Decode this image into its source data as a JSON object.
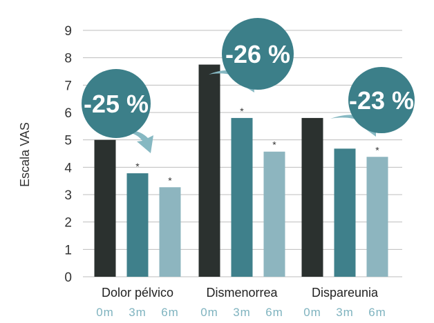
{
  "chart_data": {
    "type": "bar",
    "ylabel": "Escala VAS",
    "ylim": [
      0,
      9
    ],
    "yticks": [
      0,
      1,
      2,
      3,
      4,
      5,
      6,
      7,
      8,
      9
    ],
    "grid": true,
    "categories": [
      "Dolor pélvico",
      "Dismenorrea",
      "Dispareunia"
    ],
    "subcategories": [
      "0m",
      "3m",
      "6m"
    ],
    "series": [
      {
        "name": "0m",
        "values": [
          5.0,
          7.75,
          5.8
        ],
        "color": "#2b312f"
      },
      {
        "name": "3m",
        "values": [
          3.78,
          5.8,
          4.68
        ],
        "color": "#3f808b"
      },
      {
        "name": "6m",
        "values": [
          3.27,
          4.57,
          4.38
        ],
        "color": "#8db5bf"
      }
    ],
    "significance": [
      {
        "category": 0,
        "series": 1,
        "mark": "*"
      },
      {
        "category": 0,
        "series": 2,
        "mark": "*"
      },
      {
        "category": 1,
        "series": 1,
        "mark": "*"
      },
      {
        "category": 1,
        "series": 2,
        "mark": "*"
      },
      {
        "category": 2,
        "series": 2,
        "mark": "*"
      }
    ],
    "annotations": [
      "-25 %",
      "-26 %",
      "-23 %"
    ],
    "bubble_color": "#3c7f89",
    "arrow_color": "#86b8c2"
  }
}
